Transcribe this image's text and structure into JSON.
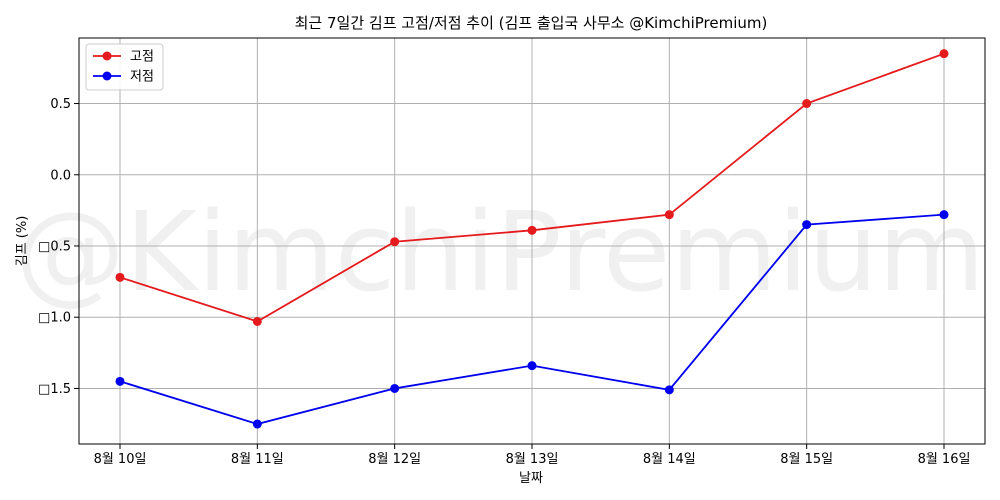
{
  "chart_data": {
    "type": "line",
    "title": "최근 7일간 김프 고점/저점 추이 (김프 출입국 사무소 @KimchiPremium)",
    "xlabel": "날짜",
    "ylabel": "김프 (%)",
    "watermark": "@KimchiPremium",
    "categories": [
      "8월 10일",
      "8월 11일",
      "8월 12일",
      "8월 13일",
      "8월 14일",
      "8월 15일",
      "8월 16일"
    ],
    "series": [
      {
        "name": "고점",
        "color": "#e41a1c",
        "values": [
          -0.72,
          -1.03,
          -0.47,
          -0.39,
          -0.28,
          0.5,
          0.85
        ]
      },
      {
        "name": "저점",
        "color": "#0000ee",
        "values": [
          -1.45,
          -1.75,
          -1.5,
          -1.34,
          -1.51,
          -0.35,
          -0.28
        ]
      }
    ],
    "y_ticks": [
      0.5,
      0.0,
      -0.5,
      -1.0,
      -1.5
    ],
    "y_tick_labels": [
      "0.5",
      "0.0",
      "□0.5",
      "□1.0",
      "□1.5"
    ],
    "ylim": [
      -1.89,
      0.96
    ],
    "grid": true,
    "legend_position": "top-left"
  }
}
